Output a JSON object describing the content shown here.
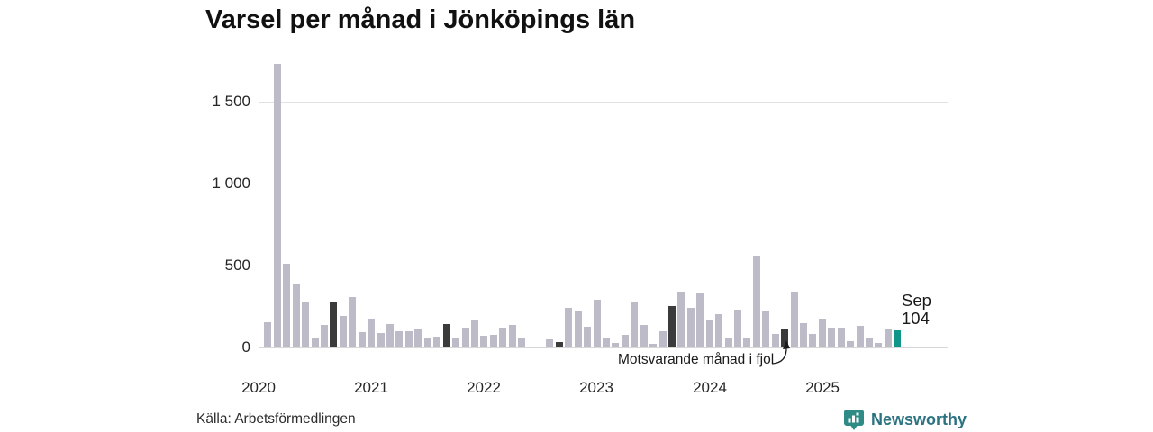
{
  "title": "Varsel per månad i Jönköpings län",
  "source": "Källa: Arbetsförmedlingen",
  "brand": {
    "name": "Newsworthy"
  },
  "annotation": {
    "text": "Motsvarande månad i fjol"
  },
  "highlight_label": {
    "line1": "Sep",
    "line2": "104"
  },
  "y_axis": {
    "ticks": [
      {
        "label": "0",
        "value": 0
      },
      {
        "label": "500",
        "value": 500
      },
      {
        "label": "1 000",
        "value": 1000
      },
      {
        "label": "1 500",
        "value": 1500
      }
    ]
  },
  "x_axis": {
    "years": [
      "2020",
      "2021",
      "2022",
      "2023",
      "2024",
      "2025"
    ]
  },
  "colors": {
    "bar_default": "#bdbbc7",
    "bar_dark": "#3b3b3b",
    "bar_highlight": "#0f9689",
    "gridline": "#e1e1e1",
    "baseline": "#d8d8d8",
    "logo_icon": "#2e8b85",
    "logo_text": "#2c7382"
  },
  "chart_data": {
    "type": "bar",
    "title": "Varsel per månad i Jönköpings län",
    "xlabel": "",
    "ylabel": "",
    "ylim": [
      0,
      1750
    ],
    "gridlines": [
      500,
      1000,
      1500
    ],
    "legend": "none",
    "x": [
      "2020-01",
      "2020-02",
      "2020-03",
      "2020-04",
      "2020-05",
      "2020-06",
      "2020-07",
      "2020-08",
      "2020-09",
      "2020-10",
      "2020-11",
      "2020-12",
      "2021-01",
      "2021-02",
      "2021-03",
      "2021-04",
      "2021-05",
      "2021-06",
      "2021-07",
      "2021-08",
      "2021-09",
      "2021-10",
      "2021-11",
      "2021-12",
      "2022-01",
      "2022-02",
      "2022-03",
      "2022-04",
      "2022-05",
      "2022-06",
      "2022-07",
      "2022-08",
      "2022-09",
      "2022-10",
      "2022-11",
      "2022-12",
      "2023-01",
      "2023-02",
      "2023-03",
      "2023-04",
      "2023-05",
      "2023-06",
      "2023-07",
      "2023-08",
      "2023-09",
      "2023-10",
      "2023-11",
      "2023-12",
      "2024-01",
      "2024-02",
      "2024-03",
      "2024-04",
      "2024-05",
      "2024-06",
      "2024-07",
      "2024-08",
      "2024-09",
      "2024-10",
      "2024-11",
      "2024-12",
      "2025-01",
      "2025-02",
      "2025-03",
      "2025-04",
      "2025-05",
      "2025-06",
      "2025-07",
      "2025-08",
      "2025-09"
    ],
    "values": [
      0,
      155,
      1730,
      510,
      390,
      280,
      55,
      140,
      280,
      190,
      310,
      95,
      175,
      90,
      145,
      100,
      100,
      110,
      55,
      65,
      145,
      60,
      120,
      165,
      70,
      75,
      120,
      135,
      55,
      0,
      0,
      50,
      35,
      240,
      220,
      125,
      290,
      60,
      30,
      75,
      275,
      140,
      20,
      100,
      255,
      340,
      240,
      330,
      165,
      205,
      60,
      230,
      60,
      560,
      225,
      80,
      110,
      340,
      150,
      80,
      175,
      120,
      120,
      40,
      130,
      55,
      30,
      110,
      104
    ],
    "dark_indices": [
      8,
      20,
      32,
      44,
      56
    ],
    "dark_meaning": "Motsvarande månad i fjol (september föregående år)",
    "highlight_index": 68,
    "highlight": {
      "month": "2025-09",
      "label": "Sep",
      "value": 104
    }
  }
}
